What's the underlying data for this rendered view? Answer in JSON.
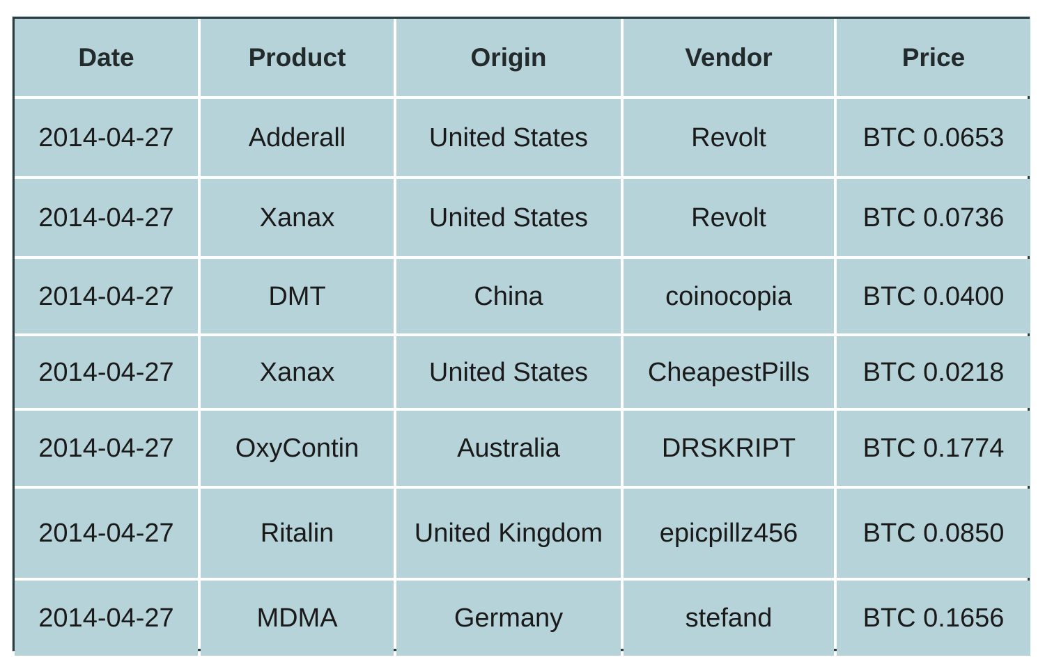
{
  "table": {
    "columns": [
      "Date",
      "Product",
      "Origin",
      "Vendor",
      "Price"
    ],
    "rows": [
      [
        "2014-04-27",
        "Adderall",
        "United States",
        "Revolt",
        "BTC 0.0653"
      ],
      [
        "2014-04-27",
        "Xanax",
        "United States",
        "Revolt",
        "BTC 0.0736"
      ],
      [
        "2014-04-27",
        "DMT",
        "China",
        "coinocopia",
        "BTC 0.0400"
      ],
      [
        "2014-04-27",
        "Xanax",
        "United States",
        "CheapestPills",
        "BTC 0.0218"
      ],
      [
        "2014-04-27",
        "OxyContin",
        "Australia",
        "DRSKRIPT",
        "BTC 0.1774"
      ],
      [
        "2014-04-27",
        "Ritalin",
        "United Kingdom",
        "epicpillz456",
        "BTC 0.0850"
      ],
      [
        "2014-04-27",
        "MDMA",
        "Germany",
        "stefand",
        "BTC 0.1656"
      ]
    ]
  },
  "colors": {
    "cell_background": "#b6d3d9",
    "grid_lines": "#ffffff",
    "border": "#2b3e44",
    "text": "#1a1a1a"
  }
}
